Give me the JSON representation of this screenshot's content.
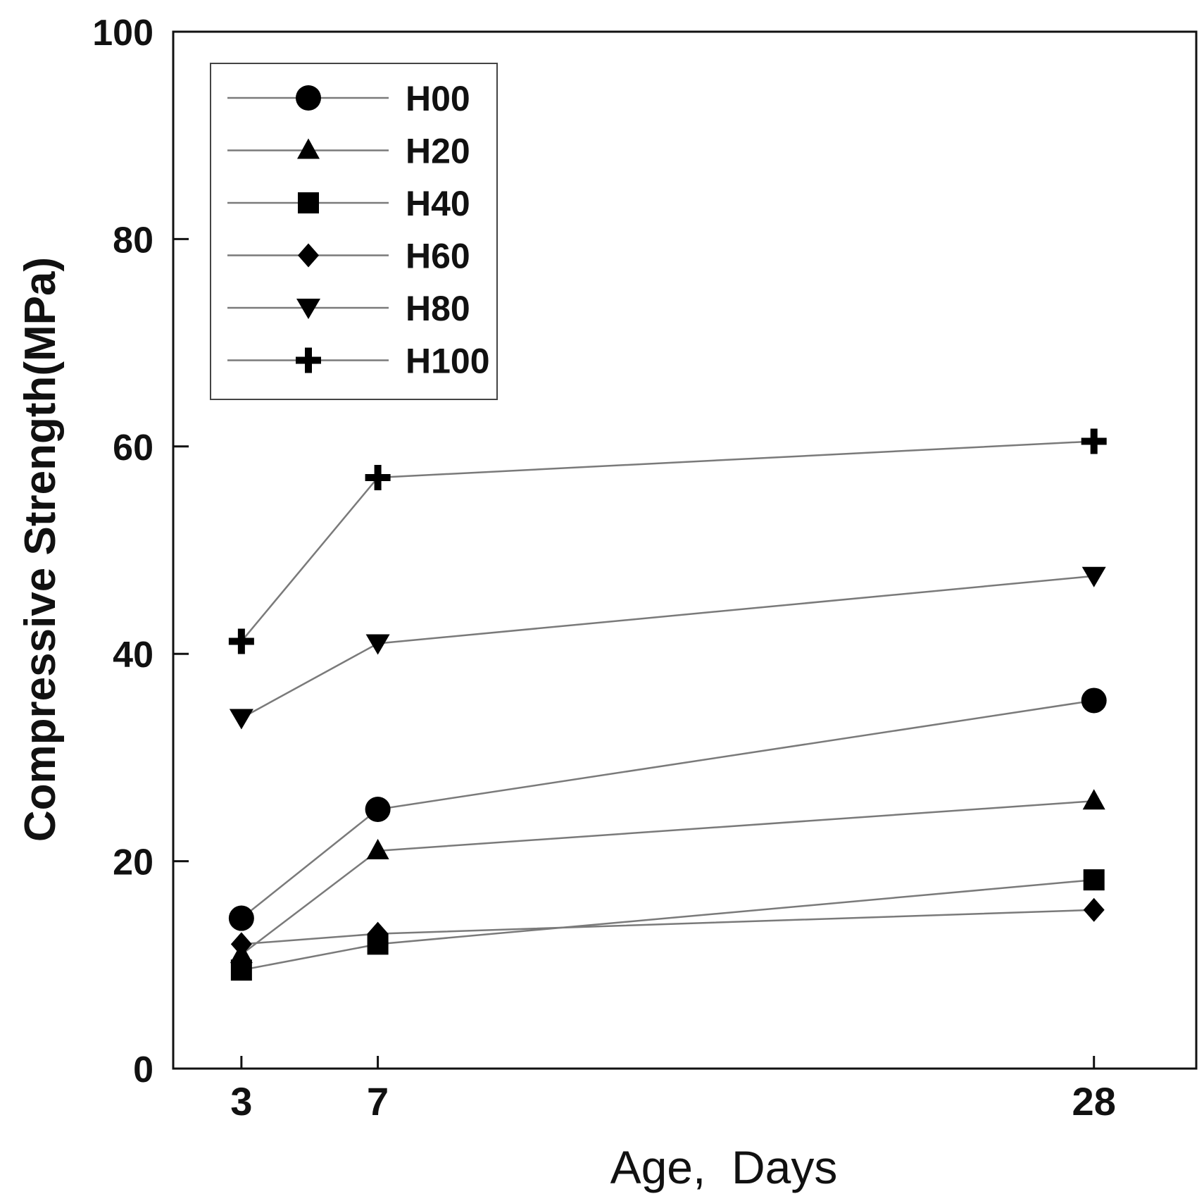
{
  "chart_data": {
    "type": "line",
    "title": "",
    "xlabel": "Age,  Days",
    "ylabel": "Compressive Strength(MPa)",
    "x": [
      3,
      7,
      28
    ],
    "x_tick_labels": [
      "3",
      "7",
      "28"
    ],
    "xlim": [
      1,
      31
    ],
    "ylim": [
      0,
      100
    ],
    "y_ticks": [
      0,
      20,
      40,
      60,
      80,
      100
    ],
    "y_tick_labels": [
      "0",
      "20",
      "40",
      "60",
      "80",
      "100"
    ],
    "grid": false,
    "legend_position": "top-left",
    "series": [
      {
        "name": "H00",
        "marker": "circle",
        "values": [
          14.5,
          25.0,
          35.5
        ]
      },
      {
        "name": "H20",
        "marker": "triangle-up",
        "values": [
          11.0,
          21.0,
          25.8
        ]
      },
      {
        "name": "H40",
        "marker": "square",
        "values": [
          9.5,
          12.0,
          18.2
        ]
      },
      {
        "name": "H60",
        "marker": "diamond",
        "values": [
          12.0,
          13.0,
          15.3
        ]
      },
      {
        "name": "H80",
        "marker": "triangle-down",
        "values": [
          33.8,
          41.0,
          47.5
        ]
      },
      {
        "name": "H100",
        "marker": "plus",
        "values": [
          41.2,
          57.0,
          60.5
        ]
      }
    ],
    "colors": {
      "line": "#7a7a7a",
      "marker": "#000000",
      "axis": "#111111"
    }
  }
}
